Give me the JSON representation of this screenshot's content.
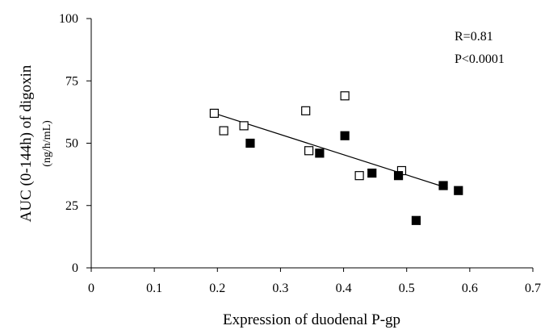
{
  "chart_data": {
    "type": "scatter",
    "title": "",
    "xlabel": "Expression of duodenal P-gp",
    "ylabel": "AUC (0-144h) of digoxin",
    "ylabel_unit": "(ng/h/mL)",
    "xlim": [
      0,
      0.7
    ],
    "ylim": [
      0,
      100
    ],
    "x_ticks": [
      0,
      0.1,
      0.2,
      0.3,
      0.4,
      0.5,
      0.6,
      0.7
    ],
    "x_tick_labels": [
      "0",
      "0.1",
      "0.2",
      "0.3",
      "0.4",
      "0.5",
      "0.6",
      "0.7"
    ],
    "y_ticks": [
      0,
      25,
      50,
      75,
      100
    ],
    "y_tick_labels": [
      "0",
      "25",
      "50",
      "75",
      "100"
    ],
    "grid": false,
    "series": [
      {
        "marker": "open-square",
        "color": "#000000",
        "points": [
          {
            "x": 0.195,
            "y": 62
          },
          {
            "x": 0.21,
            "y": 55
          },
          {
            "x": 0.242,
            "y": 57
          },
          {
            "x": 0.34,
            "y": 63
          },
          {
            "x": 0.345,
            "y": 47
          },
          {
            "x": 0.402,
            "y": 69
          },
          {
            "x": 0.425,
            "y": 37
          },
          {
            "x": 0.492,
            "y": 39
          }
        ]
      },
      {
        "marker": "filled-square",
        "color": "#000000",
        "points": [
          {
            "x": 0.252,
            "y": 50
          },
          {
            "x": 0.362,
            "y": 46
          },
          {
            "x": 0.402,
            "y": 53
          },
          {
            "x": 0.445,
            "y": 38
          },
          {
            "x": 0.487,
            "y": 37
          },
          {
            "x": 0.515,
            "y": 19
          },
          {
            "x": 0.558,
            "y": 33
          },
          {
            "x": 0.582,
            "y": 31
          }
        ]
      }
    ],
    "trendline": {
      "from": {
        "x": 0.195,
        "y": 62
      },
      "to": {
        "x": 0.565,
        "y": 32
      }
    },
    "annotations": [
      "R=0.81",
      "P<0.0001"
    ]
  }
}
